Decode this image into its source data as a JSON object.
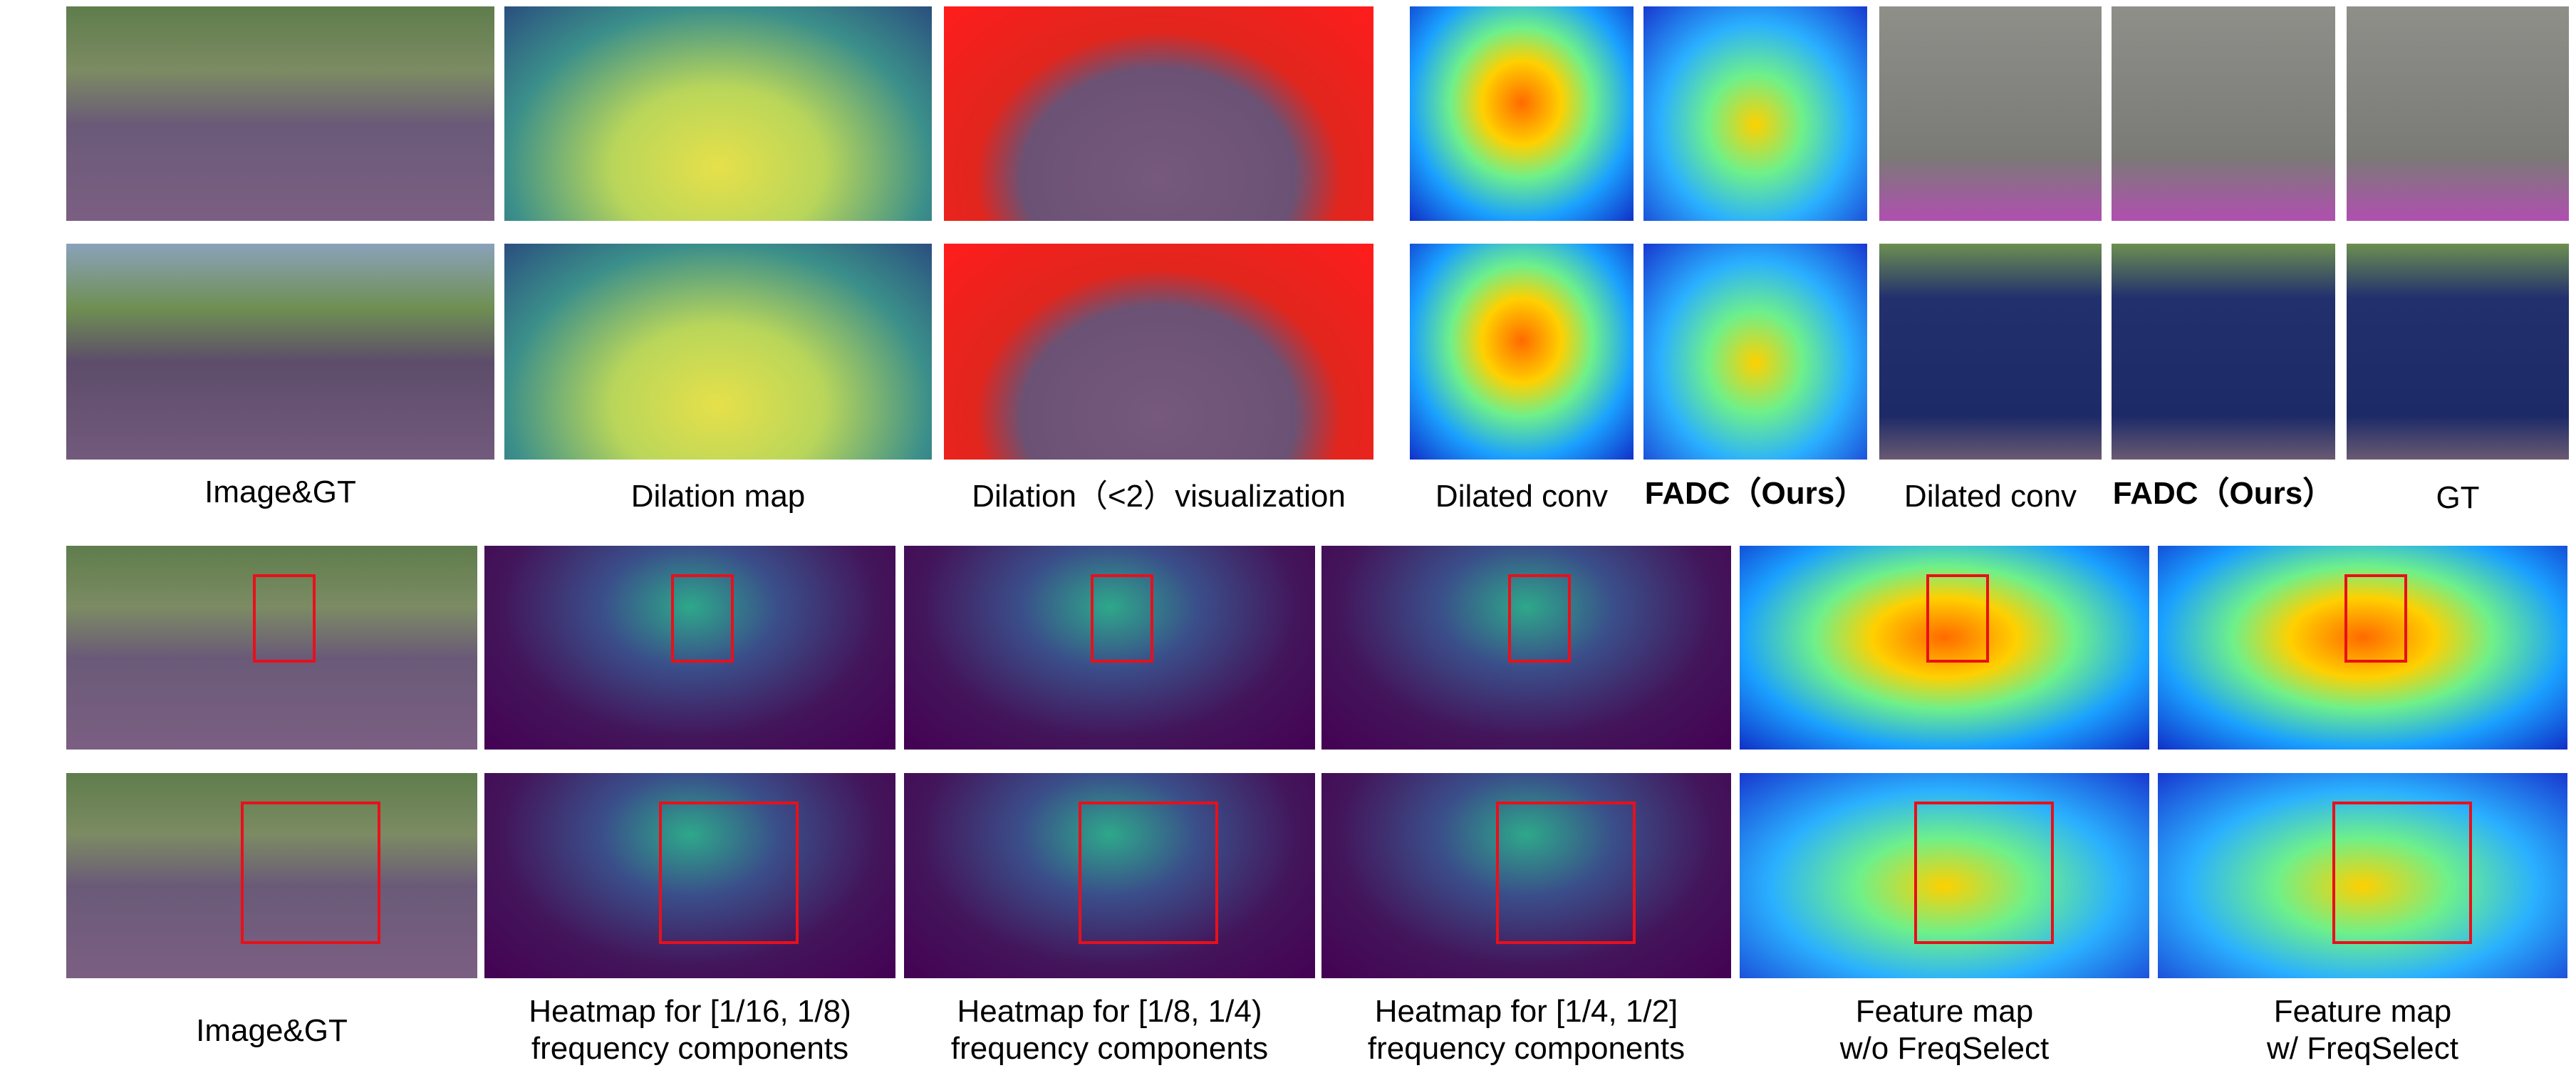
{
  "top_row": {
    "captions": [
      "Image&GT",
      "Dilation map",
      "Dilation（<2）visualization",
      "Dilated conv",
      "FADC（Ours）",
      "Dilated conv",
      "FADC（Ours）",
      "GT"
    ]
  },
  "bottom_row": {
    "captions": [
      {
        "lines": [
          "Image&GT"
        ]
      },
      {
        "lines": [
          "Heatmap for [1/16, 1/8)",
          "frequency components"
        ]
      },
      {
        "lines": [
          "Heatmap for [1/8, 1/4)",
          "frequency components"
        ]
      },
      {
        "lines": [
          "Heatmap for [1/4, 1/2]",
          "frequency components"
        ]
      },
      {
        "lines": [
          "Feature map",
          "w/o FreqSelect"
        ]
      },
      {
        "lines": [
          "Feature map",
          "w/ FreqSelect"
        ]
      }
    ]
  }
}
